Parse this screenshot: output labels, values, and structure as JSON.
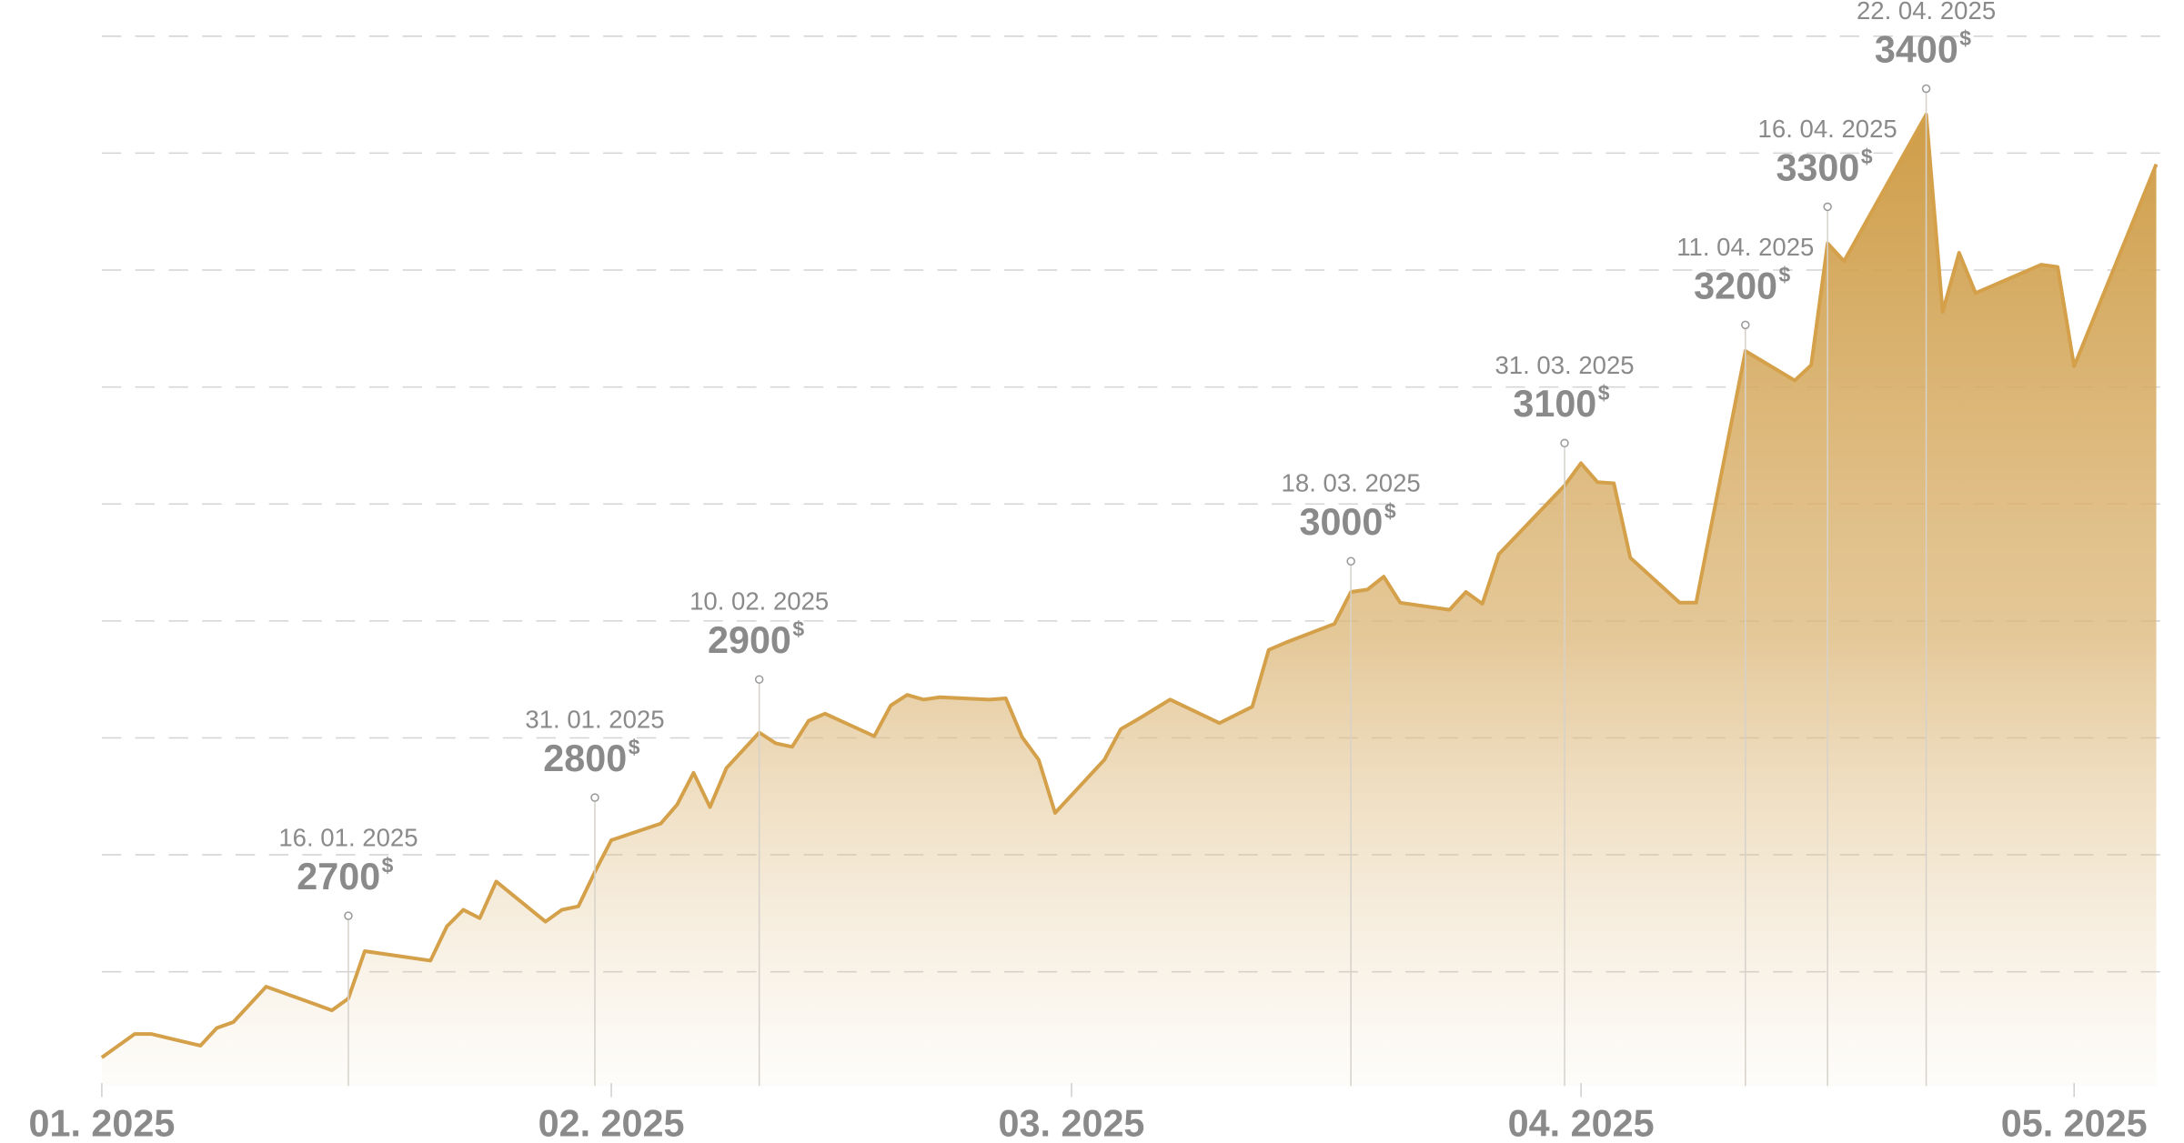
{
  "chart_data": {
    "type": "area",
    "color": "#d4a04a",
    "x": [
      0,
      2,
      3,
      6,
      7,
      8,
      10,
      13,
      14,
      15,
      16,
      17,
      20,
      21,
      22,
      23,
      24,
      27,
      28,
      29,
      30,
      31,
      34,
      35,
      36,
      37,
      38,
      40,
      41,
      42,
      43,
      44,
      47,
      48,
      49,
      50,
      51,
      54,
      55,
      56,
      57,
      58,
      61,
      62,
      63,
      65,
      68,
      70,
      71,
      72,
      75,
      76,
      77,
      78,
      79,
      82,
      83,
      84,
      85,
      89,
      90,
      91,
      92,
      93,
      96,
      97,
      100,
      103,
      104,
      105,
      106,
      111,
      112,
      113,
      114,
      118,
      119,
      120,
      125
    ],
    "values": [
      2580,
      2600,
      2600,
      2590,
      2605,
      2610,
      2640,
      2625,
      2620,
      2630,
      2670,
      2668,
      2662,
      2691,
      2705,
      2698,
      2729,
      2695,
      2705,
      2708,
      2737,
      2764,
      2778,
      2794,
      2821,
      2792,
      2825,
      2855,
      2846,
      2843,
      2865,
      2871,
      2852,
      2878,
      2887,
      2883,
      2885,
      2883,
      2884,
      2851,
      2832,
      2787,
      2832,
      2858,
      2866,
      2883,
      2863,
      2877,
      2925,
      2931,
      2947,
      2974,
      2976,
      2987,
      2965,
      2959,
      2974,
      2964,
      3006,
      3064,
      3083,
      3067,
      3066,
      3003,
      2965,
      2965,
      3178,
      3153,
      3166,
      3269,
      3254,
      3378,
      3211,
      3261,
      3227,
      3251,
      3249,
      3165,
      3336
    ],
    "xlim": [
      0,
      126
    ],
    "xticks": [
      {
        "value": 0,
        "label": "01. 2025"
      },
      {
        "value": 31,
        "label": "02. 2025"
      },
      {
        "value": 59,
        "label": "03. 2025"
      },
      {
        "value": 90,
        "label": "04. 2025"
      },
      {
        "value": 120,
        "label": "05. 2025"
      }
    ],
    "ylim": [
      2556,
      3475
    ],
    "currency": "$",
    "annotations": [
      {
        "x": 15,
        "date": "16. 01. 2025",
        "value": 2700
      },
      {
        "x": 30,
        "date": "31. 01. 2025",
        "value": 2800
      },
      {
        "x": 40,
        "date": "10. 02. 2025",
        "value": 2900
      },
      {
        "x": 76,
        "date": "18. 03. 2025",
        "value": 3000
      },
      {
        "x": 89,
        "date": "31. 03. 2025",
        "value": 3100
      },
      {
        "x": 100,
        "date": "11. 04. 2025",
        "value": 3200
      },
      {
        "x": 105,
        "date": "16. 04. 2025",
        "value": 3300
      },
      {
        "x": 111,
        "date": "22. 04. 2025",
        "value": 3400
      }
    ]
  }
}
